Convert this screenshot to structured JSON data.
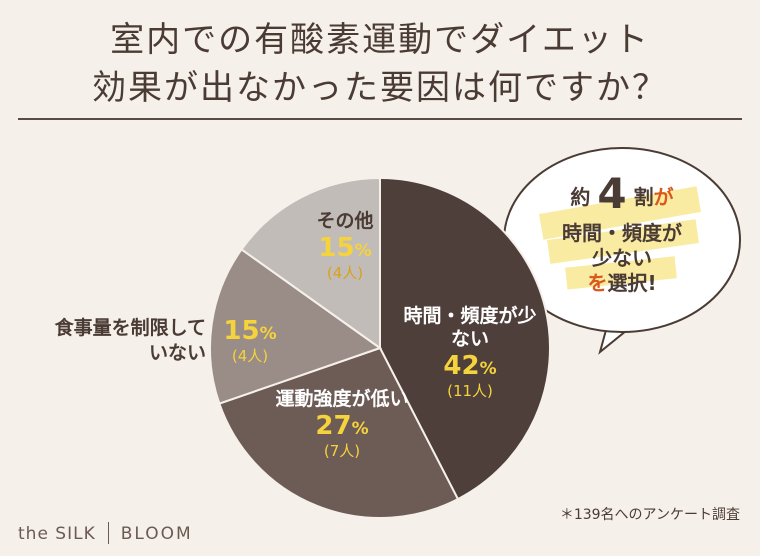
{
  "title": {
    "line1": "室内での有酸素運動でダイエット",
    "line2": "効果が出なかった要因は何ですか？"
  },
  "callout": {
    "prefix": "約",
    "number": "4",
    "unit": "割",
    "ga": "が",
    "line2": "時間・頻度が",
    "line3": "少ない",
    "line4_a": "を",
    "line4_b": "選択",
    "line4_c": "!"
  },
  "footnote": "＊139名へのアンケート調査",
  "brand": {
    "left": "the SILK",
    "right": "BLOOM"
  },
  "colors": {
    "background": "#f6f0ea",
    "time_slice": "#4e3f3b",
    "weak_slice": "#6d5b55",
    "diet_slice": "#9a8c86",
    "other_slice": "#c2bcb8",
    "percent_accent": "#f5d33c",
    "callout_accent": "#d9581c"
  },
  "chart_data": {
    "type": "pie",
    "slices": [
      {
        "label": "時間・頻度が少ない",
        "value": 42,
        "percent": "42",
        "count": "(11人)"
      },
      {
        "label": "運動強度が低い",
        "value": 27,
        "percent": "27",
        "count": "(7人)"
      },
      {
        "label": "食事量を制限していない",
        "value": 15,
        "percent": "15",
        "count": "(4人)"
      },
      {
        "label": "その他",
        "value": 15,
        "percent": "15",
        "count": "(4人)"
      }
    ],
    "percent_unit": "%"
  }
}
